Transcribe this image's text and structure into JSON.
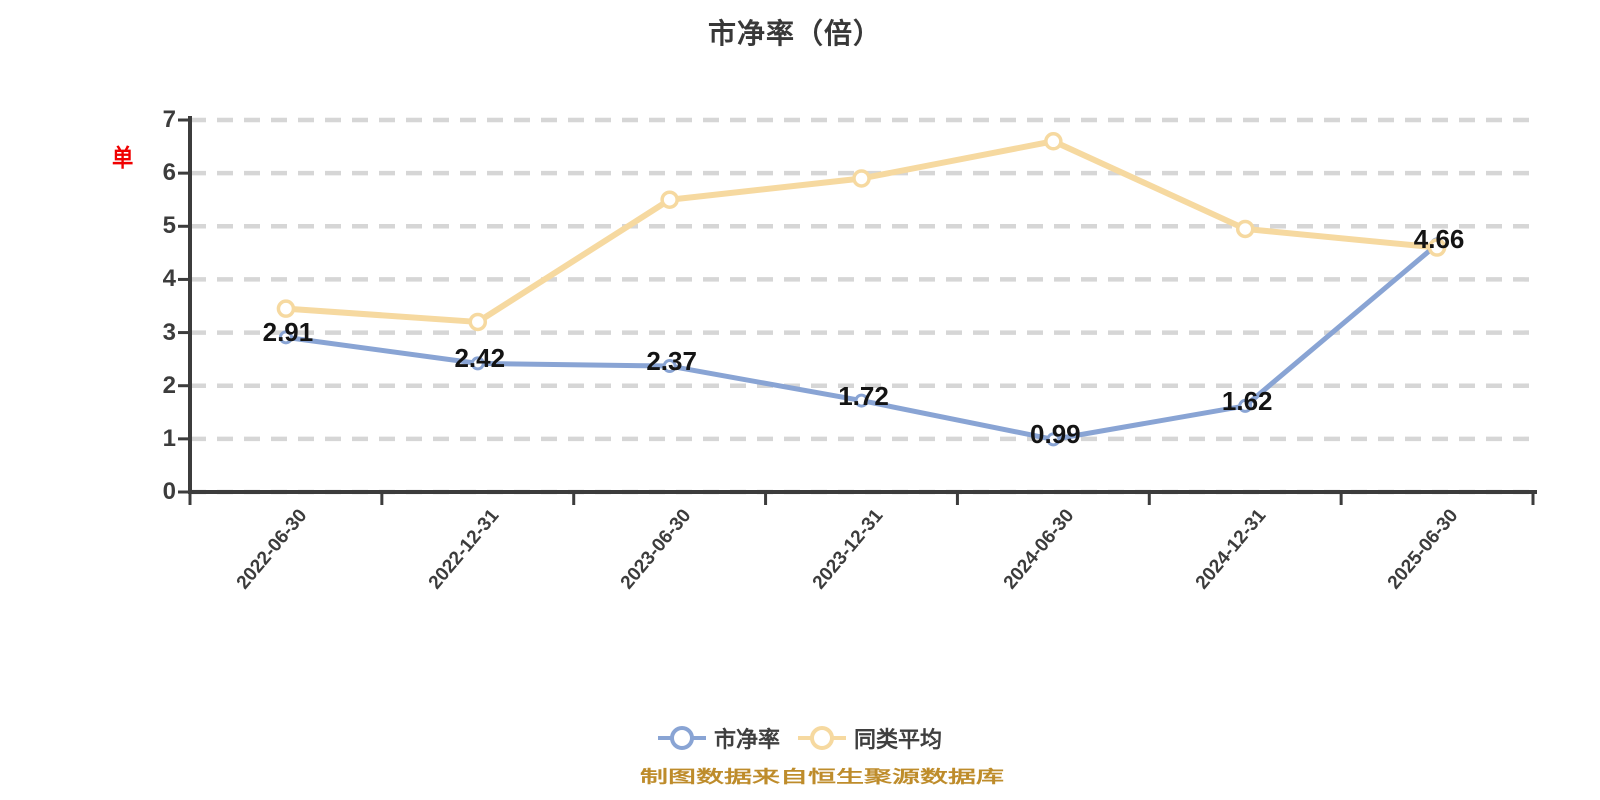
{
  "title": "市净率（倍）",
  "y_axis": {
    "red_label": "单",
    "ticks": [
      0,
      1,
      2,
      3,
      4,
      5,
      6,
      7
    ],
    "min": 0,
    "max": 7
  },
  "legend": {
    "items": [
      {
        "label": "市净率",
        "color": "#89a4d4"
      },
      {
        "label": "同类平均",
        "color": "#f6d9a0"
      }
    ]
  },
  "footer": "制图数据来自恒生聚源数据库",
  "colors": {
    "series_pb": "#89a4d4",
    "series_avg": "#f6d9a0",
    "grid": "#d6d6d6",
    "axis": "#3c3c3c",
    "data_label": "#141414",
    "marker_fill": "#ffffff",
    "footer_text": "#be8c2b",
    "red_label": "#f00000"
  },
  "chart_data": {
    "type": "line",
    "title": "市净率（倍）",
    "categories": [
      "2022-06-30",
      "2022-12-31",
      "2023-06-30",
      "2023-12-31",
      "2024-06-30",
      "2024-12-31",
      "2025-06-30"
    ],
    "series": [
      {
        "name": "市净率",
        "color": "#89a4d4",
        "values": [
          2.91,
          2.42,
          2.37,
          1.72,
          0.99,
          1.62,
          4.66
        ],
        "labels": [
          "2.91",
          "2.42",
          "2.37",
          "1.72",
          "0.99",
          "1.62",
          "4.66"
        ],
        "show_labels": true,
        "marker": "circle-white-fill"
      },
      {
        "name": "同类平均",
        "color": "#f6d9a0",
        "values": [
          3.45,
          3.2,
          5.5,
          5.9,
          6.6,
          4.95,
          4.6
        ],
        "show_labels": false,
        "marker": "circle-white-fill"
      }
    ],
    "xlabel": "",
    "ylabel": "",
    "ylim": [
      0,
      7
    ],
    "y_tick_step": 1,
    "grid": "horizontal-dashed",
    "legend_position": "bottom"
  }
}
